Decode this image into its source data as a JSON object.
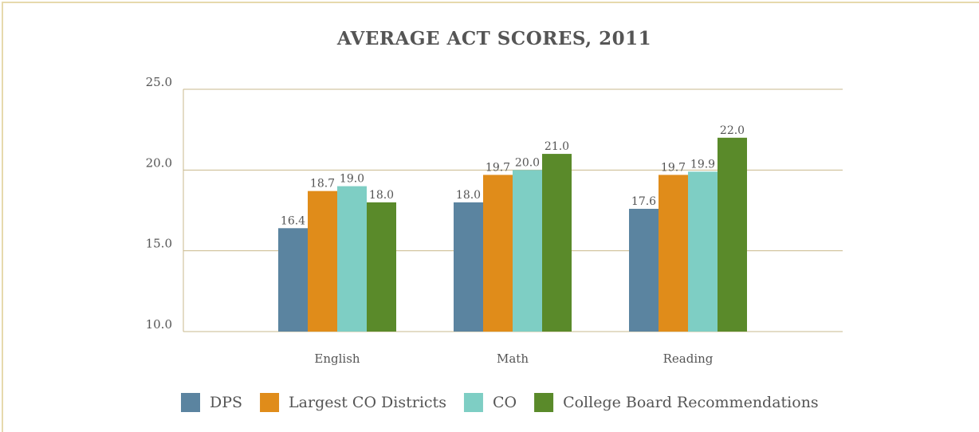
{
  "chart_data": {
    "type": "bar",
    "title": "AVERAGE ACT SCORES, 2011",
    "categories": [
      "English",
      "Math",
      "Reading"
    ],
    "series": [
      {
        "name": "DPS",
        "color": "#5b84a0",
        "values": [
          16.4,
          18.0,
          17.6
        ],
        "value_labels": [
          "16.4",
          "18.0",
          "17.6"
        ]
      },
      {
        "name": "Largest CO Districts",
        "color": "#e08c1a",
        "values": [
          18.7,
          19.7,
          19.7
        ],
        "value_labels": [
          "18.7",
          "19.7",
          "19.7"
        ]
      },
      {
        "name": "CO",
        "color": "#7ecec4",
        "values": [
          19.0,
          20.0,
          19.9
        ],
        "value_labels": [
          "19.0",
          "20.0",
          "19.9"
        ]
      },
      {
        "name": "College Board Recommendations",
        "color": "#5a8a2a",
        "values": [
          18.0,
          21.0,
          22.0
        ],
        "value_labels": [
          "18.0",
          "21.0",
          "22.0"
        ]
      }
    ],
    "ylim": [
      10,
      25
    ],
    "yticks": [
      {
        "value": 10,
        "label": "10.0"
      },
      {
        "value": 15,
        "label": "15.0"
      },
      {
        "value": 20,
        "label": "20.0"
      },
      {
        "value": 25,
        "label": "25.0"
      }
    ],
    "grid": true
  }
}
